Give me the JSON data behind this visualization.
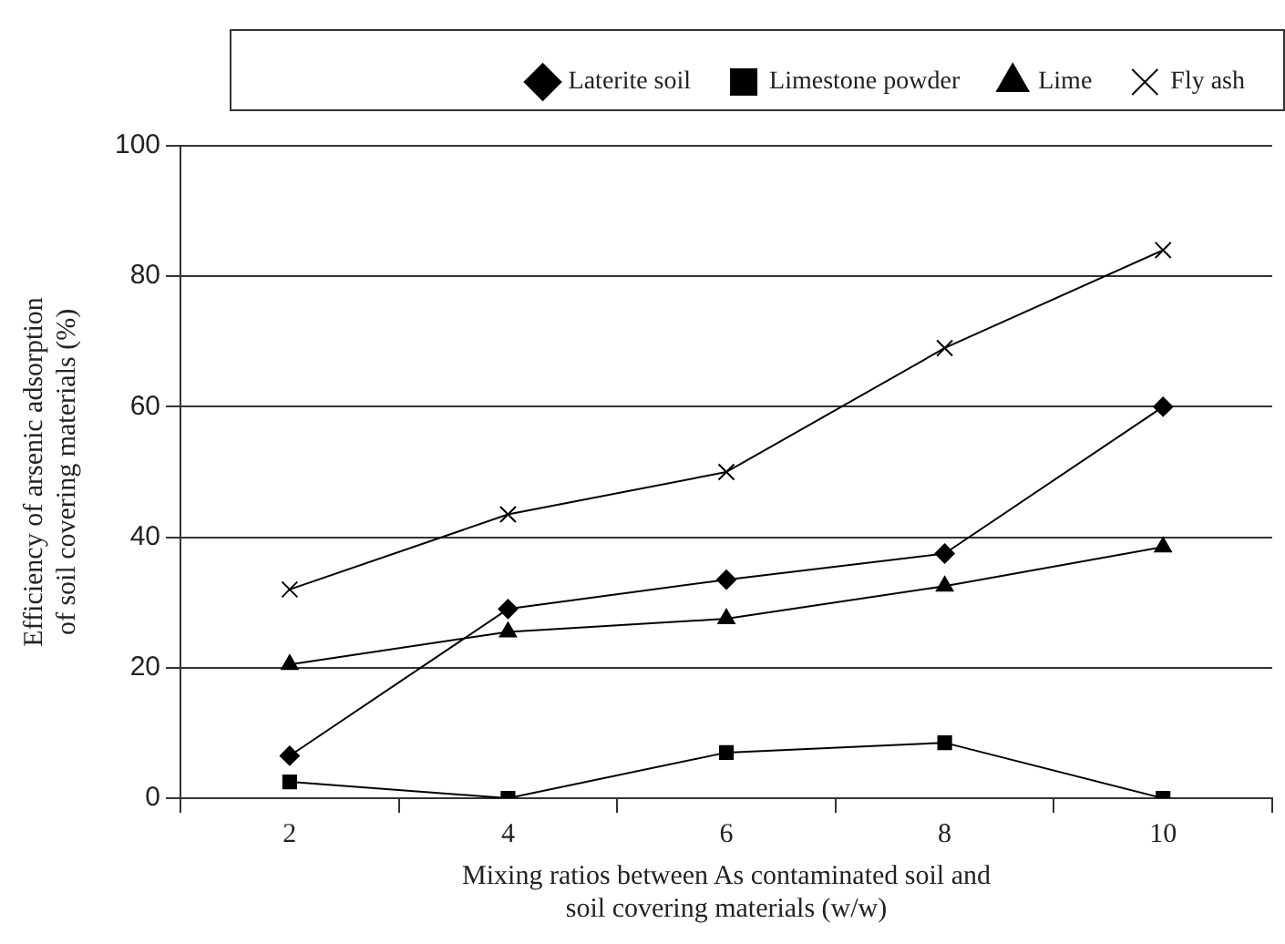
{
  "chart_data": {
    "type": "line",
    "xlabel": "Mixing ratios between As contaminated soil and\nsoil covering materials (w/w)",
    "ylabel": "Efficiency of arsenic adsorption\nof soil covering materials (%)",
    "categories": [
      "2",
      "4",
      "6",
      "8",
      "10"
    ],
    "series": [
      {
        "name": "Laterite soil",
        "color": "#000000",
        "marker": "diamond",
        "values": [
          6.5,
          29,
          33.5,
          37.5,
          60
        ]
      },
      {
        "name": "Limestone powder",
        "color": "#000000",
        "marker": "square",
        "values": [
          2.5,
          0,
          7,
          8.5,
          0
        ]
      },
      {
        "name": "Lime",
        "color": "#000000",
        "marker": "triangle",
        "values": [
          20.5,
          25.5,
          27.5,
          32.5,
          38.5
        ]
      },
      {
        "name": "Fly ash",
        "color": "#000000",
        "marker": "cross",
        "values": [
          32,
          43.5,
          50,
          69,
          84
        ]
      }
    ],
    "ylim": [
      0,
      100
    ],
    "yticks": [
      0,
      20,
      40,
      60,
      80,
      100
    ],
    "grid": "y",
    "legend": "top",
    "line_style": "solid"
  }
}
